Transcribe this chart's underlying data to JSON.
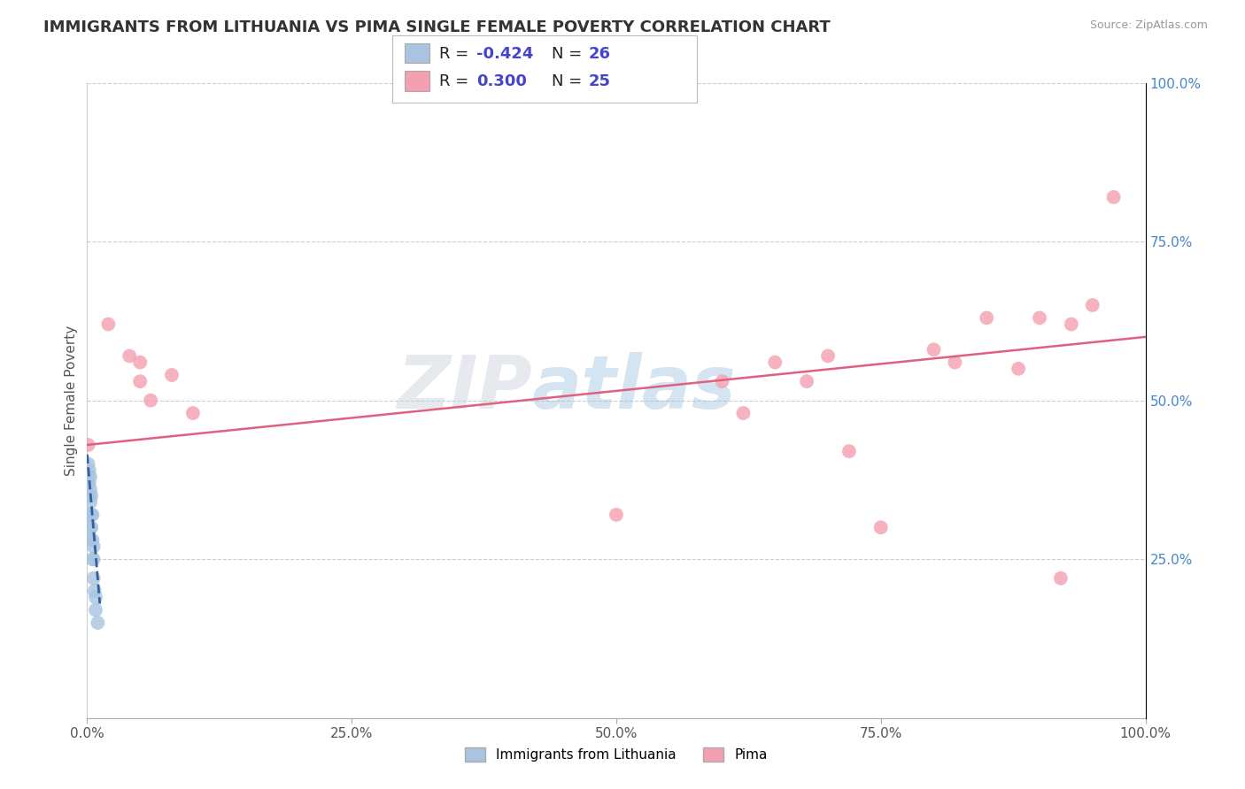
{
  "title": "IMMIGRANTS FROM LITHUANIA VS PIMA SINGLE FEMALE POVERTY CORRELATION CHART",
  "source": "Source: ZipAtlas.com",
  "ylabel": "Single Female Poverty",
  "xlim": [
    0.0,
    1.0
  ],
  "ylim": [
    0.0,
    1.0
  ],
  "xtick_labels": [
    "0.0%",
    "25.0%",
    "50.0%",
    "75.0%",
    "100.0%"
  ],
  "xtick_positions": [
    0.0,
    0.25,
    0.5,
    0.75,
    1.0
  ],
  "ytick_labels_left": [
    "25.0%",
    "50.0%",
    "75.0%",
    "100.0%"
  ],
  "ytick_labels_right": [
    "25.0%",
    "50.0%",
    "75.0%",
    "100.0%"
  ],
  "ytick_positions": [
    0.25,
    0.5,
    0.75,
    1.0
  ],
  "legend_label1": "Immigrants from Lithuania",
  "legend_label2": "Pima",
  "blue_color": "#a8c4e0",
  "pink_color": "#f4a0b0",
  "blue_line_color": "#3060a0",
  "pink_line_color": "#e06080",
  "R1": "-0.424",
  "N1": "26",
  "R2": "0.300",
  "N2": "25",
  "stat_color": "#4444cc",
  "watermark_zip": "ZIP",
  "watermark_atlas": "atlas",
  "blue_scatter_x": [
    0.001,
    0.001,
    0.001,
    0.002,
    0.002,
    0.002,
    0.002,
    0.003,
    0.003,
    0.003,
    0.003,
    0.003,
    0.004,
    0.004,
    0.004,
    0.004,
    0.005,
    0.005,
    0.005,
    0.006,
    0.006,
    0.006,
    0.007,
    0.008,
    0.008,
    0.01
  ],
  "blue_scatter_y": [
    0.37,
    0.38,
    0.4,
    0.32,
    0.35,
    0.37,
    0.39,
    0.3,
    0.32,
    0.34,
    0.36,
    0.38,
    0.28,
    0.3,
    0.32,
    0.35,
    0.25,
    0.28,
    0.32,
    0.22,
    0.25,
    0.27,
    0.2,
    0.17,
    0.19,
    0.15
  ],
  "pink_scatter_x": [
    0.001,
    0.02,
    0.04,
    0.05,
    0.05,
    0.06,
    0.08,
    0.1,
    0.5,
    0.6,
    0.62,
    0.65,
    0.68,
    0.7,
    0.72,
    0.75,
    0.8,
    0.82,
    0.85,
    0.88,
    0.9,
    0.92,
    0.93,
    0.95,
    0.97
  ],
  "pink_scatter_y": [
    0.43,
    0.62,
    0.57,
    0.53,
    0.56,
    0.5,
    0.54,
    0.48,
    0.32,
    0.53,
    0.48,
    0.56,
    0.53,
    0.57,
    0.42,
    0.3,
    0.58,
    0.56,
    0.63,
    0.55,
    0.63,
    0.22,
    0.62,
    0.65,
    0.82
  ],
  "blue_line_x": [
    0.0,
    0.012
  ],
  "blue_line_y": [
    0.415,
    0.18
  ],
  "pink_line_x": [
    0.0,
    1.0
  ],
  "pink_line_y": [
    0.43,
    0.6
  ],
  "grid_color": "#cccccc",
  "background_color": "#ffffff",
  "title_fontsize": 13,
  "axis_label_fontsize": 11,
  "tick_fontsize": 11,
  "stat_fontsize": 13
}
